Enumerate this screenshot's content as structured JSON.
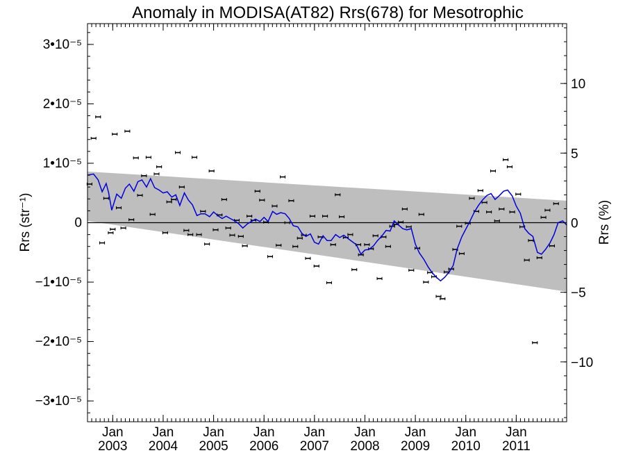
{
  "chart_data": {
    "type": "scatter",
    "title": "Anomaly in MODISA(AT82) Rrs(678) for Mesotrophic",
    "ylabel_left": "Rrs (str⁻¹)",
    "ylabel_right": "Rrs (%)",
    "xlim": [
      2002.5,
      2012.0
    ],
    "ylim_left": [
      -3.35e-05,
      3.35e-05
    ],
    "ylim_right": [
      -14.3,
      14.3
    ],
    "y_ticks_left": [
      {
        "value": 3e-05,
        "label": "3•10⁻⁵"
      },
      {
        "value": 2e-05,
        "label": "2•10⁻⁵"
      },
      {
        "value": 1e-05,
        "label": "1•10⁻⁵"
      },
      {
        "value": 0,
        "label": "0"
      },
      {
        "value": -1e-05,
        "label": "−1•10⁻⁵"
      },
      {
        "value": -2e-05,
        "label": "−2•10⁻⁵"
      },
      {
        "value": -3e-05,
        "label": "−3•10⁻⁵"
      }
    ],
    "y_ticks_right": [
      {
        "value": 10,
        "label": "10"
      },
      {
        "value": 5,
        "label": "5"
      },
      {
        "value": 0,
        "label": "0"
      },
      {
        "value": -5,
        "label": "−5"
      },
      {
        "value": -10,
        "label": "−10"
      }
    ],
    "x_ticks": [
      {
        "value": 2003.0,
        "month": "Jan",
        "year": "2003"
      },
      {
        "value": 2004.0,
        "month": "Jan",
        "year": "2004"
      },
      {
        "value": 2005.0,
        "month": "Jan",
        "year": "2005"
      },
      {
        "value": 2006.0,
        "month": "Jan",
        "year": "2006"
      },
      {
        "value": 2007.0,
        "month": "Jan",
        "year": "2007"
      },
      {
        "value": 2008.0,
        "month": "Jan",
        "year": "2008"
      },
      {
        "value": 2009.0,
        "month": "Jan",
        "year": "2009"
      },
      {
        "value": 2010.0,
        "month": "Jan",
        "year": "2010"
      },
      {
        "value": 2011.0,
        "month": "Jan",
        "year": "2011"
      }
    ],
    "band": {
      "x": [
        2002.5,
        2012.0
      ],
      "upper": [
        8.6e-06,
        3.7e-06
      ],
      "lower": [
        3e-07,
        -1.16e-05
      ],
      "color": "#bebebe"
    },
    "series": [
      {
        "kind": "points_with_errorbars",
        "color": "#000000",
        "error": 2.5e-07,
        "points": [
          [
            2002.54,
            6.5e-06
          ],
          [
            2002.62,
            1.42e-05
          ],
          [
            2002.71,
            1.78e-05
          ],
          [
            2002.79,
            -3.4e-06
          ],
          [
            2002.87,
            4.1e-06
          ],
          [
            2002.96,
            -1.7e-06
          ],
          [
            2003.0,
            -1.1e-06
          ],
          [
            2003.04,
            1.49e-05
          ],
          [
            2003.12,
            2.5e-06
          ],
          [
            2003.21,
            -9e-07
          ],
          [
            2003.29,
            1.54e-05
          ],
          [
            2003.37,
            5e-07
          ],
          [
            2003.46,
            1.09e-05
          ],
          [
            2003.54,
            4.6e-06
          ],
          [
            2003.62,
            7.9e-06
          ],
          [
            2003.71,
            1.1e-05
          ],
          [
            2003.79,
            1.4e-06
          ],
          [
            2003.87,
            8.2e-06
          ],
          [
            2003.92,
            9.4e-06
          ],
          [
            2004.04,
            -1.7e-06
          ],
          [
            2004.12,
            3.5e-06
          ],
          [
            2004.21,
            3.9e-06
          ],
          [
            2004.29,
            1.18e-05
          ],
          [
            2004.37,
            6e-06
          ],
          [
            2004.46,
            -1.3e-06
          ],
          [
            2004.54,
            -2e-06
          ],
          [
            2004.62,
            1.1e-05
          ],
          [
            2004.71,
            -2e-06
          ],
          [
            2004.79,
            1.9e-06
          ],
          [
            2004.87,
            -3.6e-06
          ],
          [
            2004.96,
            8.7e-06
          ],
          [
            2005.04,
            -1.2e-06
          ],
          [
            2005.12,
            1.3e-06
          ],
          [
            2005.21,
            3.9e-06
          ],
          [
            2005.29,
            -9e-07
          ],
          [
            2005.37,
            -2.1e-06
          ],
          [
            2005.46,
            4e-07
          ],
          [
            2005.54,
            -2.3e-06
          ],
          [
            2005.62,
            -3.9e-06
          ],
          [
            2005.71,
            1.1e-06
          ],
          [
            2005.79,
            4e-07
          ],
          [
            2005.87,
            5.3e-06
          ],
          [
            2005.96,
            3.8e-06
          ],
          [
            2006.04,
            1e-07
          ],
          [
            2006.12,
            -5.7e-06
          ],
          [
            2006.21,
            2.8e-06
          ],
          [
            2006.29,
            -3.8e-06
          ],
          [
            2006.37,
            7.7e-06
          ],
          [
            2006.46,
            0.0
          ],
          [
            2006.54,
            3.7e-06
          ],
          [
            2006.62,
            -4e-06
          ],
          [
            2006.71,
            -2.6e-06
          ],
          [
            2006.79,
            -2.1e-06
          ],
          [
            2006.87,
            -6e-06
          ],
          [
            2006.96,
            1.1e-06
          ],
          [
            2007.04,
            -7.3e-06
          ],
          [
            2007.12,
            -2.4e-06
          ],
          [
            2007.21,
            1.1e-06
          ],
          [
            2007.29,
            -1.01e-05
          ],
          [
            2007.37,
            -3.7e-06
          ],
          [
            2007.46,
            4.7e-06
          ],
          [
            2007.54,
            1e-06
          ],
          [
            2007.62,
            -2.5e-06
          ],
          [
            2007.71,
            -2e-06
          ],
          [
            2007.79,
            -7.9e-06
          ],
          [
            2007.87,
            -3.7e-06
          ],
          [
            2007.92,
            -5.4e-06
          ],
          [
            2008.04,
            -3.7e-06
          ],
          [
            2008.12,
            -4.4e-06
          ],
          [
            2008.21,
            -2.2e-06
          ],
          [
            2008.29,
            -9.4e-06
          ],
          [
            2008.37,
            -2.4e-06
          ],
          [
            2008.46,
            -4e-06
          ],
          [
            2008.54,
            -6e-07
          ],
          [
            2008.62,
            -3e-07
          ],
          [
            2008.71,
            1e-07
          ],
          [
            2008.79,
            2.3e-06
          ],
          [
            2008.87,
            -7e-07
          ],
          [
            2008.92,
            -8e-06
          ],
          [
            2009.04,
            -4.3e-06
          ],
          [
            2009.12,
            1.4e-06
          ],
          [
            2009.21,
            -1e-05
          ],
          [
            2009.29,
            -8.4e-06
          ],
          [
            2009.37,
            -9.1e-06
          ],
          [
            2009.46,
            -1.24e-05
          ],
          [
            2009.54,
            -1.28e-05
          ],
          [
            2009.62,
            -8.3e-06
          ],
          [
            2009.71,
            -7.8e-06
          ],
          [
            2009.79,
            -4.5e-06
          ],
          [
            2009.87,
            -6e-07
          ],
          [
            2009.92,
            -5.2e-06
          ],
          [
            2010.04,
            -1e-07
          ],
          [
            2010.12,
            4.1e-06
          ],
          [
            2010.21,
            1.9e-06
          ],
          [
            2010.29,
            5.4e-06
          ],
          [
            2010.37,
            3.4e-06
          ],
          [
            2010.46,
            1.8e-06
          ],
          [
            2010.54,
            8.7e-06
          ],
          [
            2010.62,
            3e-07
          ],
          [
            2010.71,
            2.3e-06
          ],
          [
            2010.79,
            1.06e-05
          ],
          [
            2010.87,
            9.4e-06
          ],
          [
            2010.92,
            1.8e-06
          ],
          [
            2011.04,
            4.8e-06
          ],
          [
            2011.12,
            -7e-07
          ],
          [
            2011.21,
            -6.3e-06
          ],
          [
            2011.29,
            -3e-06
          ],
          [
            2011.37,
            -2.02e-05
          ],
          [
            2011.46,
            -5.9e-06
          ],
          [
            2011.54,
            9e-07
          ],
          [
            2011.62,
            2.1e-06
          ],
          [
            2011.71,
            -3.9e-06
          ],
          [
            2011.79,
            3.2e-06
          ]
        ]
      },
      {
        "kind": "line",
        "color": "#0000dd",
        "points": [
          [
            2002.5,
            8e-06
          ],
          [
            2002.62,
            8.2e-06
          ],
          [
            2002.71,
            7.2e-06
          ],
          [
            2002.79,
            5.2e-06
          ],
          [
            2002.87,
            6.6e-06
          ],
          [
            2002.92,
            5e-06
          ],
          [
            2002.98,
            2.1e-06
          ],
          [
            2003.08,
            4.8e-06
          ],
          [
            2003.17,
            4.1e-06
          ],
          [
            2003.25,
            5.8e-06
          ],
          [
            2003.33,
            6.5e-06
          ],
          [
            2003.42,
            5.3e-06
          ],
          [
            2003.5,
            6.9e-06
          ],
          [
            2003.58,
            7.2e-06
          ],
          [
            2003.67,
            6e-06
          ],
          [
            2003.75,
            7.4e-06
          ],
          [
            2003.83,
            5.9e-06
          ],
          [
            2003.92,
            5.5e-06
          ],
          [
            2004.0,
            5e-06
          ],
          [
            2004.08,
            5.2e-06
          ],
          [
            2004.17,
            4.3e-06
          ],
          [
            2004.25,
            4.7e-06
          ],
          [
            2004.33,
            2.9e-06
          ],
          [
            2004.42,
            5e-06
          ],
          [
            2004.5,
            3.8e-06
          ],
          [
            2004.58,
            3e-06
          ],
          [
            2004.67,
            1.2e-06
          ],
          [
            2004.75,
            1.5e-06
          ],
          [
            2004.83,
            1.5e-06
          ],
          [
            2004.92,
            1e-06
          ],
          [
            2005.0,
            1.8e-06
          ],
          [
            2005.08,
            1.2e-06
          ],
          [
            2005.17,
            7e-07
          ],
          [
            2005.25,
            1.1e-06
          ],
          [
            2005.33,
            7e-07
          ],
          [
            2005.42,
            3e-07
          ],
          [
            2005.5,
            -2e-07
          ],
          [
            2005.58,
            -9e-07
          ],
          [
            2005.67,
            -2e-07
          ],
          [
            2005.75,
            2e-07
          ],
          [
            2005.83,
            6e-07
          ],
          [
            2005.92,
            2e-07
          ],
          [
            2006.0,
            9e-07
          ],
          [
            2006.08,
            2e-07
          ],
          [
            2006.17,
            1.9e-06
          ],
          [
            2006.25,
            1.4e-06
          ],
          [
            2006.33,
            1.7e-06
          ],
          [
            2006.42,
            1.5e-06
          ],
          [
            2006.5,
            7e-07
          ],
          [
            2006.58,
            -5e-07
          ],
          [
            2006.67,
            -7e-07
          ],
          [
            2006.75,
            -1.8e-06
          ],
          [
            2006.83,
            -2.3e-06
          ],
          [
            2006.92,
            -1.9e-06
          ],
          [
            2007.0,
            -3.3e-06
          ],
          [
            2007.08,
            -3.6e-06
          ],
          [
            2007.17,
            -2.2e-06
          ],
          [
            2007.25,
            -3e-06
          ],
          [
            2007.33,
            -3e-06
          ],
          [
            2007.42,
            -2e-06
          ],
          [
            2007.5,
            -2.5e-06
          ],
          [
            2007.58,
            -2.1e-06
          ],
          [
            2007.67,
            -2.7e-06
          ],
          [
            2007.75,
            -3.2e-06
          ],
          [
            2007.83,
            -3.7e-06
          ],
          [
            2007.92,
            -5.3e-06
          ],
          [
            2008.0,
            -4.6e-06
          ],
          [
            2008.08,
            -4.5e-06
          ],
          [
            2008.17,
            -3.9e-06
          ],
          [
            2008.25,
            -3e-06
          ],
          [
            2008.33,
            -2.3e-06
          ],
          [
            2008.42,
            -1.3e-06
          ],
          [
            2008.5,
            -1.4e-06
          ],
          [
            2008.58,
            3e-07
          ],
          [
            2008.67,
            -4e-07
          ],
          [
            2008.75,
            -1e-06
          ],
          [
            2008.83,
            -1.2e-06
          ],
          [
            2008.92,
            -1e-06
          ],
          [
            2009.0,
            -3.6e-06
          ],
          [
            2009.08,
            -5.1e-06
          ],
          [
            2009.17,
            -6.2e-06
          ],
          [
            2009.25,
            -7.4e-06
          ],
          [
            2009.33,
            -8.4e-06
          ],
          [
            2009.42,
            -9.2e-06
          ],
          [
            2009.5,
            -9.8e-06
          ],
          [
            2009.58,
            -9.2e-06
          ],
          [
            2009.67,
            -8.3e-06
          ],
          [
            2009.75,
            -7.2e-06
          ],
          [
            2009.83,
            -4.4e-06
          ],
          [
            2009.92,
            -2.4e-06
          ],
          [
            2010.0,
            -1.1e-06
          ],
          [
            2010.08,
            2e-07
          ],
          [
            2010.17,
            1.8e-06
          ],
          [
            2010.25,
            2.9e-06
          ],
          [
            2010.33,
            3.8e-06
          ],
          [
            2010.42,
            4.6e-06
          ],
          [
            2010.5,
            4.9e-06
          ],
          [
            2010.58,
            3.9e-06
          ],
          [
            2010.67,
            4.6e-06
          ],
          [
            2010.75,
            5.3e-06
          ],
          [
            2010.83,
            5.5e-06
          ],
          [
            2010.92,
            4.5e-06
          ],
          [
            2011.0,
            2.8e-06
          ],
          [
            2011.08,
            1.6e-06
          ],
          [
            2011.17,
            -1e-06
          ],
          [
            2011.25,
            -1.8e-06
          ],
          [
            2011.33,
            -2.3e-06
          ],
          [
            2011.42,
            -5e-06
          ],
          [
            2011.5,
            -5.3e-06
          ],
          [
            2011.58,
            -4.5e-06
          ],
          [
            2011.67,
            -3.4e-06
          ],
          [
            2011.75,
            -2e-06
          ],
          [
            2011.83,
            0.0
          ],
          [
            2011.92,
            3e-07
          ],
          [
            2012.0,
            -4e-07
          ]
        ]
      }
    ],
    "zero_line": true,
    "grid": false,
    "legend": "none"
  }
}
